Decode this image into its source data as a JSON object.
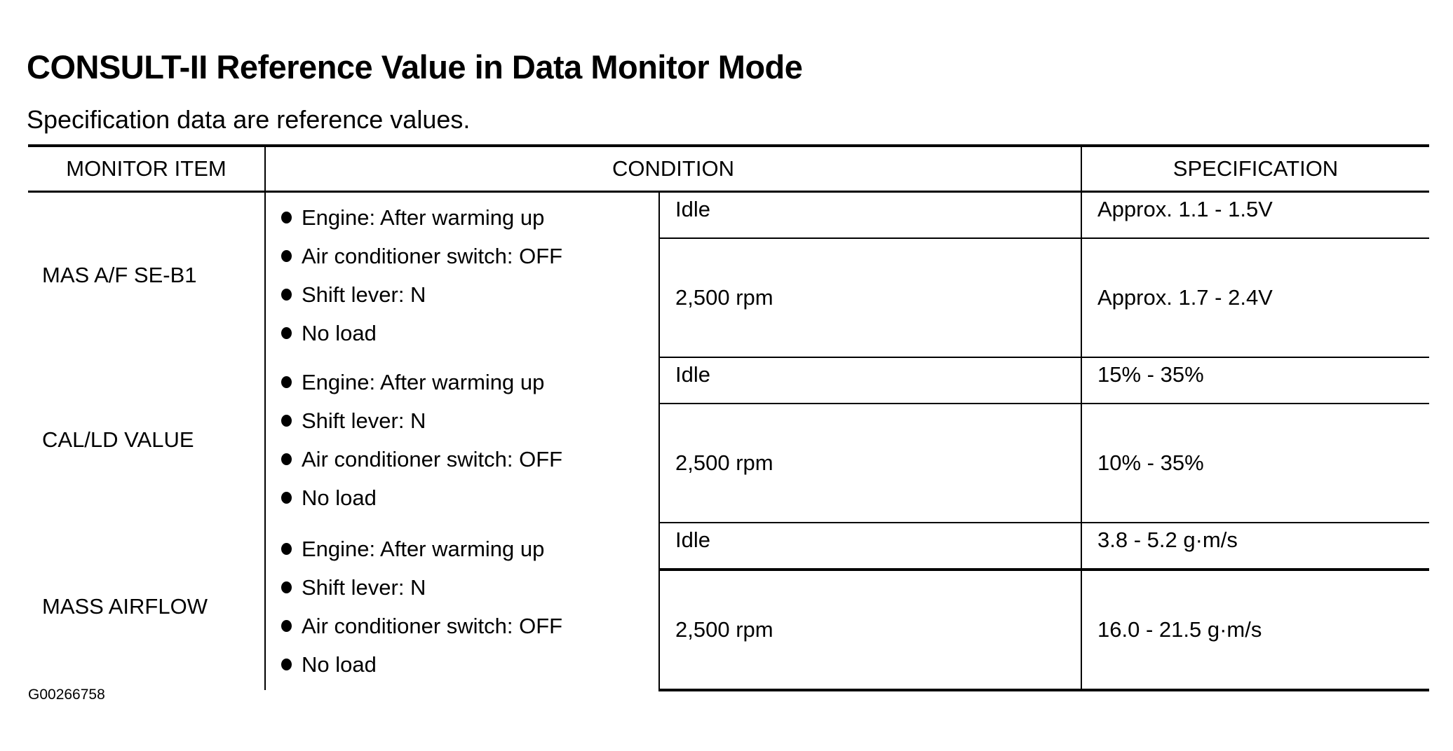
{
  "title": "CONSULT-II Reference Value in Data Monitor Mode",
  "subtitle": "Specification data are reference values.",
  "table": {
    "headers": [
      "MONITOR ITEM",
      "CONDITION",
      "SPECIFICATION"
    ],
    "rows": [
      {
        "item": "MAS A/F SE-B1",
        "conditions": [
          "Engine: After warming up",
          "Air conditioner switch: OFF",
          "Shift lever: N",
          "No load"
        ],
        "sub": [
          {
            "condition": "Idle",
            "spec": "Approx. 1.1 - 1.5V"
          },
          {
            "condition": "2,500 rpm",
            "spec": "Approx. 1.7 - 2.4V"
          }
        ]
      },
      {
        "item": "CAL/LD VALUE",
        "conditions": [
          "Engine: After warming up",
          "Shift lever: N",
          "Air conditioner switch: OFF",
          "No load"
        ],
        "sub": [
          {
            "condition": "Idle",
            "spec": "15% - 35%"
          },
          {
            "condition": "2,500 rpm",
            "spec": "10% - 35%"
          }
        ]
      },
      {
        "item": "MASS AIRFLOW",
        "conditions": [
          "Engine: After warming up",
          "Shift lever: N",
          "Air conditioner switch: OFF",
          "No load"
        ],
        "sub": [
          {
            "condition": "Idle",
            "spec": "3.8 - 5.2 g·m/s"
          },
          {
            "condition": "2,500 rpm",
            "spec": "16.0 - 21.5 g·m/s"
          }
        ]
      }
    ]
  },
  "figure_code": "G00266758"
}
